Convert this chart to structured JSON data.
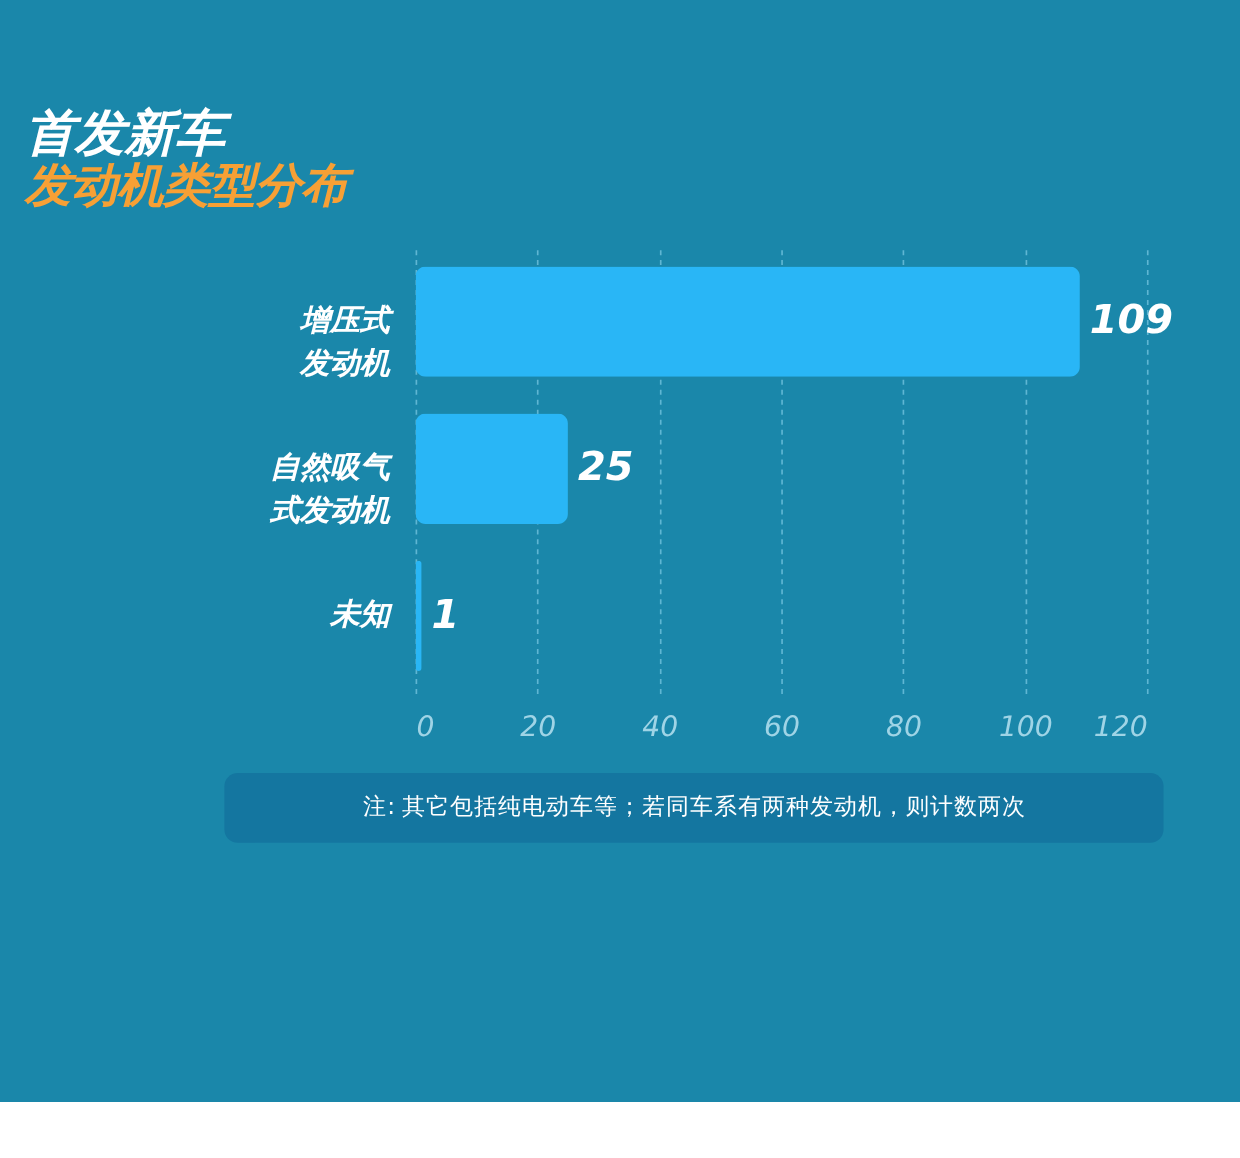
{
  "chart_data": {
    "type": "bar",
    "orientation": "horizontal",
    "title": "首发新车",
    "subtitle": "发动机类型分布",
    "categories": [
      "增压式发动机",
      "自然吸气式发动机",
      "未知"
    ],
    "values": [
      109,
      25,
      1
    ],
    "color": "#29b6f6",
    "xlim": [
      0,
      120
    ],
    "xticks": [
      0,
      20,
      40,
      60,
      80,
      100,
      120
    ],
    "grid": "x",
    "data_labels": true,
    "annotations": [
      "注: 其它包括纯电动车等；若同车系有两种发动机，则计数两次"
    ]
  }
}
